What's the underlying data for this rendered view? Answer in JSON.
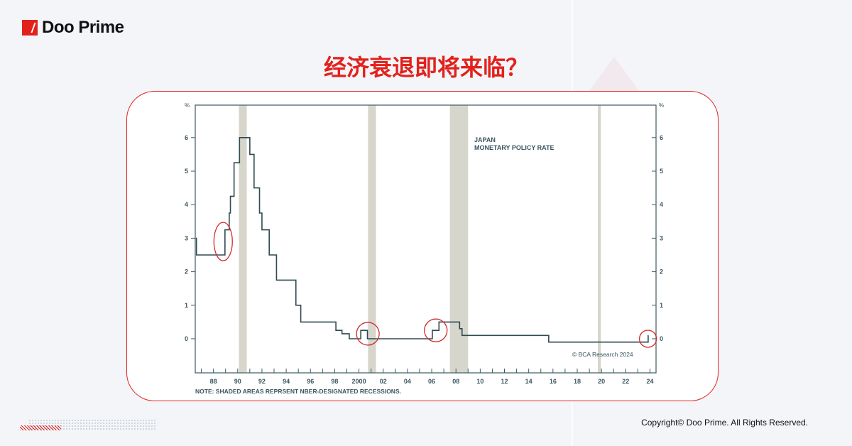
{
  "brand": {
    "name": "Doo Prime",
    "accent_color": "#e3211c"
  },
  "headline": "经济衰退即将来临？",
  "footer": {
    "copyright": "Copyright© Doo Prime. All Rights Reserved."
  },
  "chart_data": {
    "type": "line",
    "step": true,
    "title": "JAPAN",
    "subtitle": "MONETARY POLICY RATE",
    "ylabel_left": "%",
    "ylabel_right": "%",
    "xlim": [
      1986.5,
      2024.5
    ],
    "ylim": [
      -1,
      7
    ],
    "yticks": [
      0,
      1,
      2,
      3,
      4,
      5,
      6
    ],
    "ytick_labels": [
      "0",
      "1",
      "2",
      "3",
      "4",
      "5",
      "6"
    ],
    "xticks": [
      1988,
      1990,
      1992,
      1994,
      1996,
      1998,
      2000,
      2002,
      2004,
      2006,
      2008,
      2010,
      2012,
      2014,
      2016,
      2018,
      2020,
      2022,
      2024
    ],
    "xtick_labels": [
      "88",
      "90",
      "92",
      "94",
      "96",
      "98",
      "2000",
      "02",
      "04",
      "06",
      "08",
      "10",
      "12",
      "14",
      "16",
      "18",
      "20",
      "22",
      "24"
    ],
    "grid": false,
    "line_color": "#2f4a50",
    "series": [
      {
        "x": [
          1986.55,
          1986.6,
          1988.95,
          1989.3,
          1989.4,
          1989.7,
          1990.15,
          1991.0,
          1991.35,
          1991.8,
          1992.0,
          1992.6,
          1993.2,
          1994.8,
          1995.2,
          1998.1,
          1998.6,
          1999.2,
          2000.15,
          2000.7,
          2006.05,
          2006.6,
          2008.3,
          2008.5,
          2015.65,
          2023.75,
          2023.85
        ],
        "y": [
          3.0,
          2.5,
          3.25,
          3.75,
          4.25,
          5.25,
          6.0,
          5.5,
          4.5,
          3.75,
          3.25,
          2.5,
          1.75,
          1.0,
          0.5,
          0.25,
          0.15,
          0.0,
          0.25,
          0.0,
          0.25,
          0.5,
          0.3,
          0.1,
          -0.1,
          -0.1,
          0.1
        ]
      }
    ],
    "recessions": [
      [
        1990.1,
        1990.75
      ],
      [
        2000.75,
        2001.4
      ],
      [
        2007.5,
        2009.0
      ],
      [
        2019.7,
        2019.95
      ]
    ],
    "recession_color": "#d6d6cc",
    "highlights": [
      {
        "x": 1988.8,
        "y": 2.9
      },
      {
        "x": 2000.5,
        "y": 0.15
      },
      {
        "x": 2006.1,
        "y": 0.25
      },
      {
        "x": 2023.6,
        "y": 0.0
      }
    ],
    "highlight_color": "#d42a2a",
    "source": "© BCA Research 2024",
    "note": "NOTE: SHADED AREAS REPRSENT NBER-DESIGNATED RECESSIONS."
  }
}
